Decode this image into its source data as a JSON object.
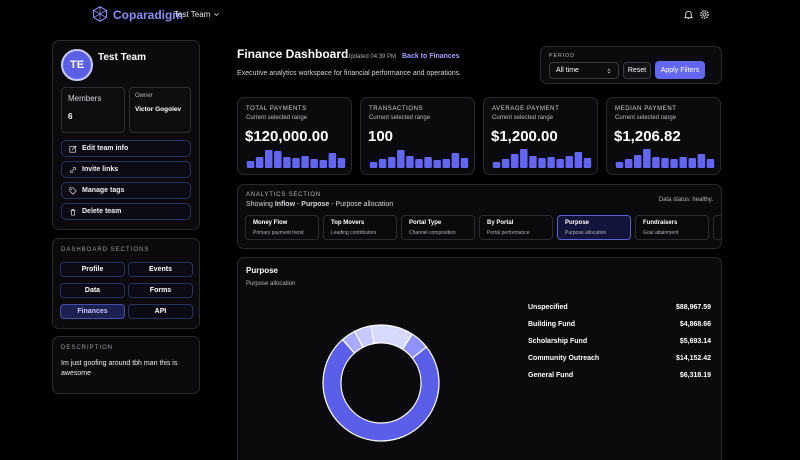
{
  "app": {
    "brand": "Coparadigm",
    "team_switch": "Test Team"
  },
  "team": {
    "avatar_initials": "TE",
    "name": "Test Team",
    "members_label": "Members",
    "members_count": "6",
    "owner_label": "Owner",
    "owner_name": "Victor Gogolev",
    "actions": {
      "edit": "Edit team info",
      "invite": "Invite links",
      "tags": "Manage tags",
      "delete": "Delete team"
    }
  },
  "sections": {
    "title": "DASHBOARD SECTIONS",
    "items": [
      "Profile",
      "Events",
      "Data",
      "Forms",
      "Finances",
      "API"
    ],
    "active": "Finances"
  },
  "description": {
    "title": "DESCRIPTION",
    "text": "Im just goofing around tbh man this is awesome"
  },
  "header": {
    "title": "Finance Dashboard",
    "updated": "Updated 04:39 PM",
    "back_link": "Back to Finances",
    "subtitle": "Executive analytics workspace for financial performance and operations."
  },
  "filters": {
    "period_label": "PERIOD",
    "period_value": "All time",
    "reset_label": "Reset",
    "apply_label": "Apply Filters"
  },
  "stats": [
    {
      "label": "TOTAL PAYMENTS",
      "sub": "Current selected range",
      "value": "$120,000.00",
      "bars": [
        0.35,
        0.55,
        0.9,
        0.85,
        0.55,
        0.5,
        0.6,
        0.45,
        0.4,
        0.75,
        0.5
      ]
    },
    {
      "label": "TRANSACTIONS",
      "sub": "Current selected range",
      "value": "100",
      "bars": [
        0.3,
        0.45,
        0.55,
        0.9,
        0.6,
        0.45,
        0.55,
        0.4,
        0.45,
        0.75,
        0.5
      ]
    },
    {
      "label": "AVERAGE PAYMENT",
      "sub": "Current selected range",
      "value": "$1,200.00",
      "bars": [
        0.3,
        0.45,
        0.7,
        0.95,
        0.6,
        0.5,
        0.55,
        0.45,
        0.6,
        0.8,
        0.5
      ]
    },
    {
      "label": "MEDIAN PAYMENT",
      "sub": "Current selected range",
      "value": "$1,206.82",
      "bars": [
        0.3,
        0.45,
        0.65,
        0.95,
        0.55,
        0.5,
        0.45,
        0.55,
        0.5,
        0.7,
        0.45
      ]
    }
  ],
  "analytics": {
    "title": "ANALYTICS SECTION",
    "showing_prefix": "Showing",
    "showing_flow": "Inflow",
    "showing_dash1": "-",
    "showing_view": "Purpose",
    "showing_dash2": "-",
    "showing_suffix": "Purpose allocation",
    "status": "Data status: healthy.",
    "tabs": [
      {
        "title": "Money Flow",
        "sub": "Primary payment trend"
      },
      {
        "title": "Top Movers",
        "sub": "Leading contributors"
      },
      {
        "title": "Portal Type",
        "sub": "Channel composition"
      },
      {
        "title": "By Portal",
        "sub": "Portal performance"
      },
      {
        "title": "Purpose",
        "sub": "Purpose allocation"
      },
      {
        "title": "Fundraisers",
        "sub": "Goal attainment"
      }
    ],
    "active_tab": "Purpose"
  },
  "purpose": {
    "title": "Purpose",
    "subtitle": "Purpose allocation"
  },
  "colors": {
    "accent": "#6366f1",
    "brand": "#8b8cf6",
    "slice_colors": [
      "#5b5ee8",
      "#a9abff",
      "#c7c8ff",
      "#d8d9ff",
      "#8f92ff"
    ]
  },
  "chart_data": {
    "type": "pie",
    "donut": true,
    "categories": [
      "Unspecified",
      "Building Fund",
      "Scholarship Fund",
      "Community Outreach",
      "General Fund"
    ],
    "values": [
      88967.59,
      4868.66,
      5693.14,
      14152.42,
      6318.19
    ],
    "value_labels": [
      "$88,967.59",
      "$4,868.66",
      "$5,693.14",
      "$14,152.42",
      "$6,318.19"
    ]
  }
}
